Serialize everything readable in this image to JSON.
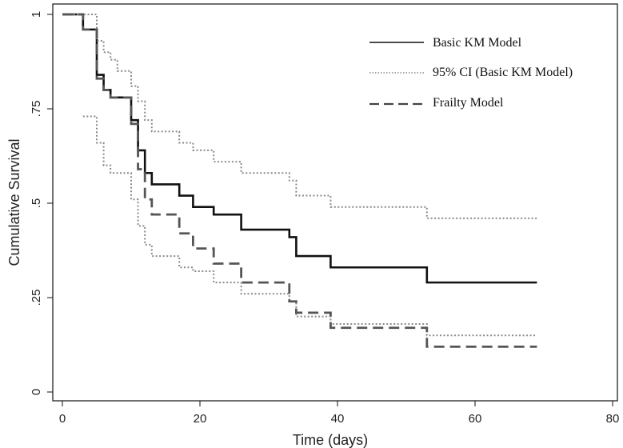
{
  "chart_data": {
    "type": "line",
    "xlabel": "Time (days)",
    "ylabel": "Cumulative Survival",
    "xlim": [
      0,
      80
    ],
    "ylim": [
      0,
      1
    ],
    "x_ticks": [
      "0",
      "20",
      "40",
      "60",
      "80"
    ],
    "y_ticks": [
      ".25",
      ".5",
      ".75",
      "1"
    ],
    "y_tick_values": [
      0.25,
      0.5,
      0.75,
      1
    ],
    "y_tick_extra": "0",
    "grid": false,
    "legend_position": "top-right",
    "series": [
      {
        "name": "Basic KM Model",
        "style": "solid",
        "color": "#111111",
        "x": [
          0,
          3,
          5,
          6,
          7,
          8,
          10,
          11,
          12,
          13,
          17,
          19,
          22,
          26,
          33,
          34,
          39,
          53,
          69
        ],
        "y": [
          1.0,
          0.96,
          0.84,
          0.8,
          0.78,
          0.78,
          0.72,
          0.64,
          0.58,
          0.55,
          0.52,
          0.49,
          0.47,
          0.43,
          0.41,
          0.36,
          0.33,
          0.29,
          0.29
        ]
      },
      {
        "name": "95% CI (Basic KM Model)",
        "style": "dotted",
        "color": "#8a8a8a",
        "x": [
          0,
          3,
          5,
          6,
          7,
          8,
          10,
          11,
          12,
          13,
          17,
          19,
          22,
          26,
          33,
          34,
          39,
          53,
          69
        ],
        "y": [
          1.0,
          1.0,
          0.93,
          0.9,
          0.88,
          0.85,
          0.81,
          0.77,
          0.72,
          0.69,
          0.66,
          0.64,
          0.61,
          0.58,
          0.56,
          0.52,
          0.49,
          0.46,
          0.46
        ]
      },
      {
        "name": "",
        "style": "dotted",
        "color": "#8a8a8a",
        "x": [
          3,
          5,
          6,
          7,
          8,
          10,
          11,
          12,
          13,
          17,
          19,
          22,
          26,
          33,
          34,
          39,
          53,
          69
        ],
        "y": [
          0.73,
          0.66,
          0.6,
          0.58,
          0.58,
          0.51,
          0.44,
          0.39,
          0.36,
          0.33,
          0.32,
          0.29,
          0.26,
          0.24,
          0.2,
          0.18,
          0.15,
          0.15
        ]
      },
      {
        "name": "Frailty Model",
        "style": "dashed",
        "color": "#555555",
        "x": [
          0,
          3,
          5,
          6,
          7,
          8,
          10,
          11,
          12,
          13,
          17,
          19,
          22,
          26,
          33,
          34,
          39,
          53,
          69
        ],
        "y": [
          1.0,
          0.96,
          0.83,
          0.8,
          0.78,
          0.78,
          0.71,
          0.59,
          0.51,
          0.47,
          0.42,
          0.38,
          0.34,
          0.29,
          0.24,
          0.21,
          0.17,
          0.12,
          0.12
        ]
      }
    ]
  }
}
